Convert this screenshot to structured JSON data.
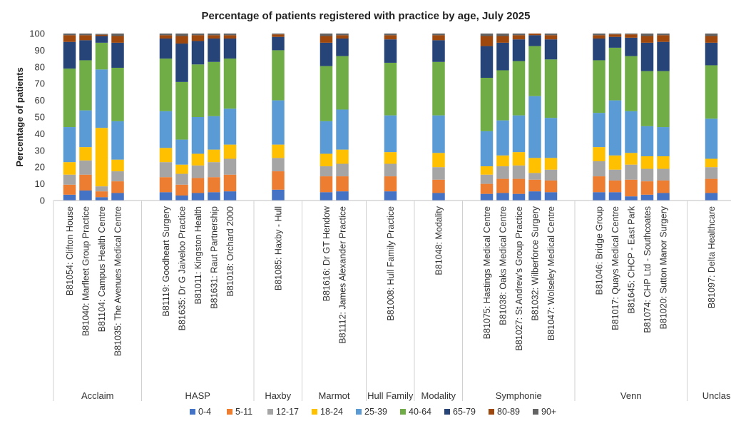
{
  "chart_data": {
    "type": "bar",
    "stacked": true,
    "title": "Percentage of patients registered with practice by age, July 2025",
    "ylabel": "Percentage of patients",
    "xlabel": "",
    "ylim": [
      0,
      100
    ],
    "yticks": [
      0,
      10,
      20,
      30,
      40,
      50,
      60,
      70,
      80,
      90,
      100
    ],
    "grid": false,
    "legend_position": "bottom",
    "series_names": [
      "0-4",
      "5-11",
      "12-17",
      "18-24",
      "25-39",
      "40-64",
      "65-79",
      "80-89",
      "90+"
    ],
    "series_colors": [
      "#4472c4",
      "#ed7d31",
      "#a5a5a5",
      "#ffc000",
      "#5b9bd5",
      "#70ad47",
      "#264478",
      "#9e480e",
      "#636363"
    ],
    "groups": [
      {
        "name": "Acclaim",
        "practices": [
          {
            "label": "B81054: Clifton House",
            "values": [
              3.5,
              6,
              6,
              7.5,
              21,
              35,
              16,
              4,
              1
            ]
          },
          {
            "label": "B81040: Marfleet Group Practice",
            "values": [
              6,
              9.5,
              8.5,
              8,
              22,
              30,
              12,
              3,
              1
            ]
          },
          {
            "label": "B81104: Campus Health Centre",
            "values": [
              2,
              3.5,
              3,
              35,
              35,
              16,
              4,
              0.8,
              0.5
            ]
          },
          {
            "label": "B81035: The Avenues Medical Centre",
            "values": [
              4.5,
              7,
              6,
              7,
              23,
              32,
              15,
              4,
              1.5
            ]
          }
        ]
      },
      {
        "name": "HASP",
        "practices": [
          {
            "label": "B81119: Goodheart Surgery",
            "values": [
              5,
              9,
              9,
              8.5,
              22,
              31.5,
              12,
              2,
              1
            ]
          },
          {
            "label": "B81635: Dr G Jaiveloo Practice",
            "values": [
              3,
              6.5,
              6.5,
              5.5,
              15,
              34.5,
              23,
              4.5,
              1.5
            ]
          },
          {
            "label": "B81011: Kingston Health",
            "values": [
              4.5,
              9,
              7.5,
              7,
              22,
              31.5,
              14,
              3.5,
              1
            ]
          },
          {
            "label": "B81631: Raut Partnership",
            "values": [
              5,
              9,
              9,
              7.5,
              20,
              32.5,
              14,
              2,
              1
            ]
          },
          {
            "label": "B81018: Orchard 2000",
            "values": [
              5.5,
              10,
              9.5,
              8.5,
              21.5,
              30,
              12,
              2,
              1
            ]
          }
        ]
      },
      {
        "name": "Haxby",
        "practices": [
          {
            "label": "B81085: Haxby - Hull",
            "values": [
              6.5,
              11,
              8,
              8,
              26.5,
              30,
              8,
              1.5,
              0.5
            ]
          }
        ]
      },
      {
        "name": "Marmot",
        "practices": [
          {
            "label": "B81616: Dr GT Hendow",
            "values": [
              5,
              9.5,
              6,
              7.5,
              19.5,
              33,
              14,
              4,
              1.5
            ]
          },
          {
            "label": "B81112: James Alexander Practice",
            "values": [
              5.5,
              9,
              7.5,
              8.5,
              24,
              32,
              10.5,
              2,
              1
            ]
          }
        ]
      },
      {
        "name": "Hull Family",
        "practices": [
          {
            "label": "B81008: Hull Family Practice",
            "values": [
              5.5,
              9,
              7.5,
              7,
              22,
              31.5,
              14,
              2.5,
              1
            ]
          }
        ]
      },
      {
        "name": "Modality",
        "practices": [
          {
            "label": "B81048: Modality",
            "values": [
              4.5,
              8,
              7.5,
              8.5,
              22.5,
              32,
              13,
              3,
              1
            ]
          }
        ]
      },
      {
        "name": "Symphonie",
        "practices": [
          {
            "label": "B81075: Hastings Medical Centre",
            "values": [
              4,
              6,
              5.5,
              5,
              21,
              32,
              19,
              6,
              1.5
            ]
          },
          {
            "label": "B81038: Oaks Medical Centre",
            "values": [
              4.5,
              8.5,
              7.5,
              6.5,
              21,
              30,
              16.5,
              4,
              1.5
            ]
          },
          {
            "label": "B81027: St Andrew's Group Practice",
            "values": [
              4,
              9,
              8,
              8,
              22,
              32.5,
              13,
              2.5,
              1
            ]
          },
          {
            "label": "B81032: Wilberforce Surgery",
            "values": [
              5.5,
              7,
              4,
              9,
              37,
              30,
              6.5,
              1,
              0.5
            ]
          },
          {
            "label": "B81047: Wolseley Medical Centre",
            "values": [
              5,
              7,
              6.5,
              7,
              24,
              35,
              12,
              2.5,
              1
            ]
          }
        ]
      },
      {
        "name": "Venn",
        "practices": [
          {
            "label": "B81046: Bridge Group",
            "values": [
              5,
              9.5,
              9,
              8.5,
              20.5,
              31.5,
              13,
              2,
              1
            ]
          },
          {
            "label": "B81017: Quays Medical Centre",
            "values": [
              5,
              7,
              6.5,
              8.5,
              33,
              31.5,
              6.5,
              1.5,
              0.5
            ]
          },
          {
            "label": "B81645: CHCP - East Park",
            "values": [
              2.5,
              10,
              9,
              7,
              25,
              33,
              11,
              2,
              0.5
            ]
          },
          {
            "label": "B81074: CHP Ltd - Southcoates",
            "values": [
              3.5,
              8,
              7.5,
              7.5,
              18,
              33,
              17,
              4,
              1.5
            ]
          },
          {
            "label": "B81020: Sutton Manor Surgery",
            "values": [
              4.5,
              7.5,
              7,
              7.5,
              17.5,
              33.5,
              17.5,
              4,
              1
            ]
          }
        ]
      },
      {
        "name": "Unclassified",
        "practices": [
          {
            "label": "B81097: Delta Healthcare",
            "values": [
              4.5,
              8.5,
              7,
              5,
              24,
              32,
              13.5,
              4,
              1.5
            ]
          }
        ]
      }
    ]
  }
}
